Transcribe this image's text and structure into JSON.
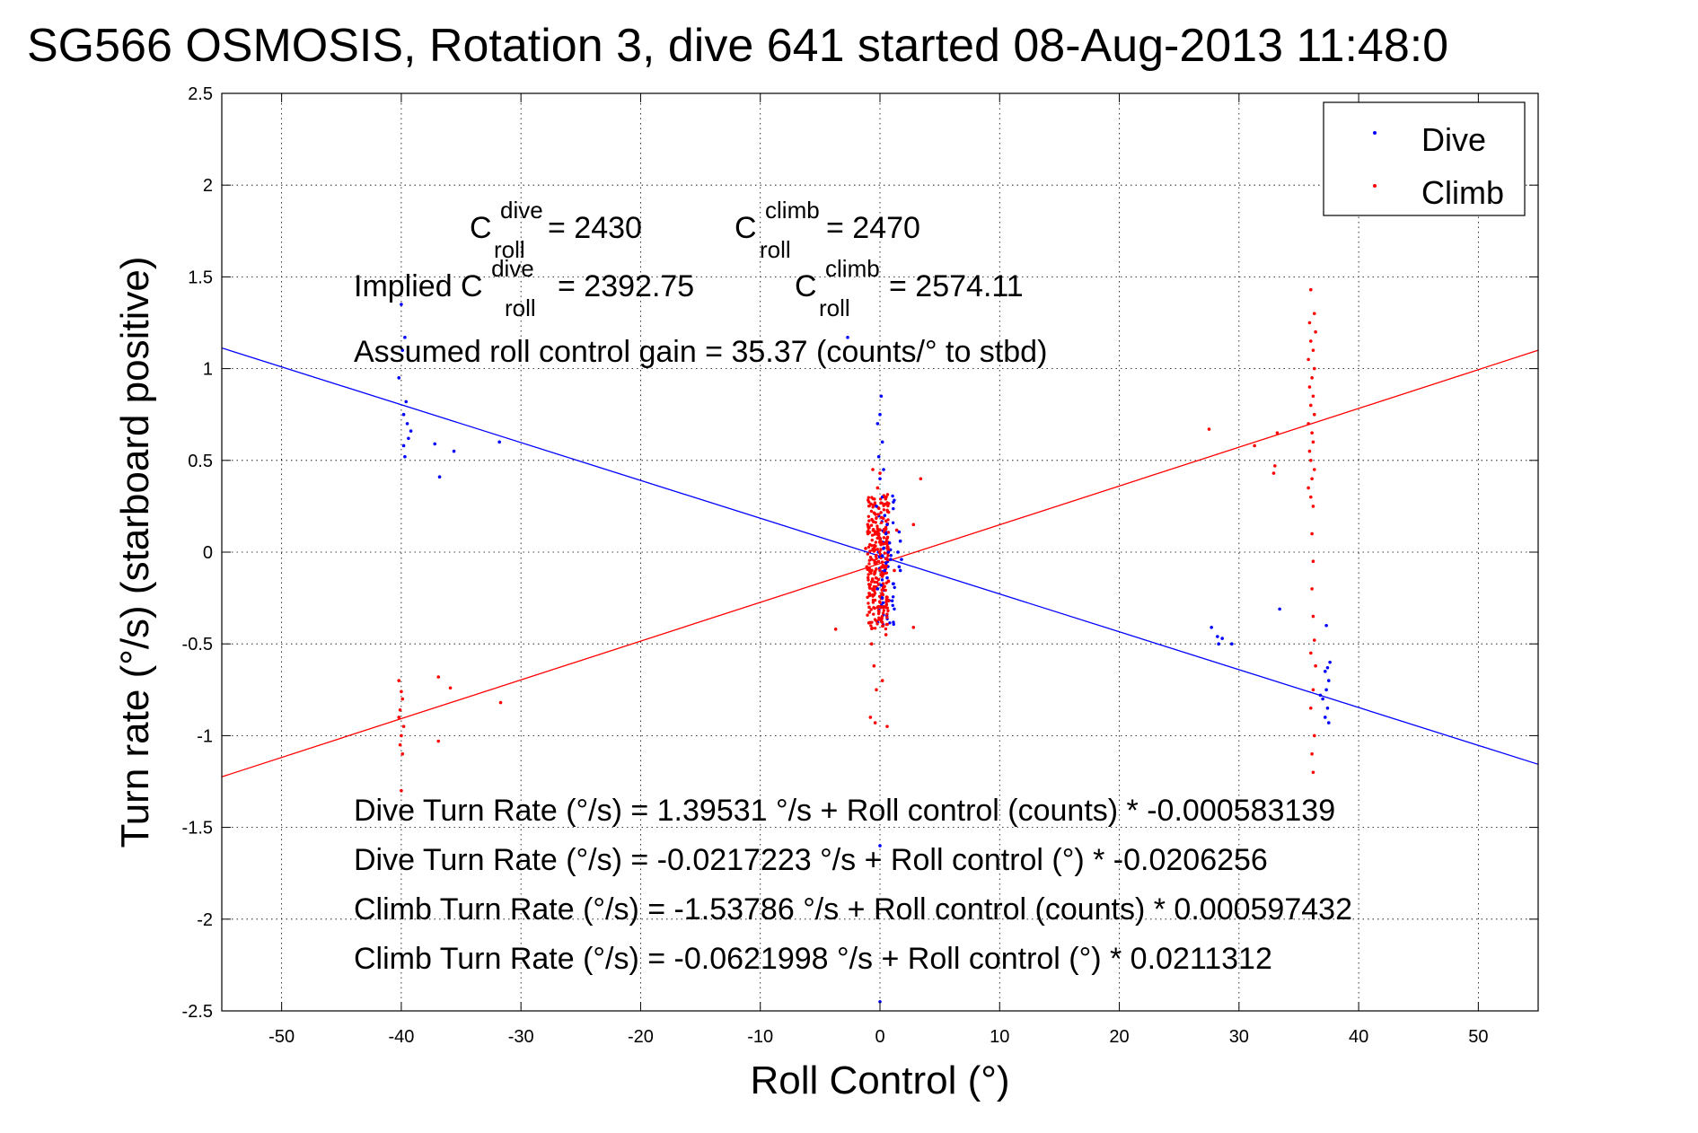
{
  "chart_data": {
    "type": "scatter",
    "title": "SG566 OSMOSIS, Rotation 3, dive 641 started 08-Aug-2013 11:48:0",
    "xlabel": "Roll Control (°)",
    "ylabel": "Turn rate (°/s)  (starboard positive)",
    "xlim": [
      -55,
      55
    ],
    "ylim": [
      -2.5,
      2.5
    ],
    "xticks": [
      -50,
      -40,
      -30,
      -20,
      -10,
      0,
      10,
      20,
      30,
      40,
      50
    ],
    "yticks": [
      -2.5,
      -2,
      -1.5,
      -1,
      -0.5,
      0,
      0.5,
      1,
      1.5,
      2,
      2.5
    ],
    "grid": true,
    "legend": {
      "position": "top-right",
      "entries": [
        {
          "label": "Dive",
          "color": "#0000ff"
        },
        {
          "label": "Climb",
          "color": "#ff0000"
        }
      ]
    },
    "series": [
      {
        "name": "Dive",
        "color": "#0000ff",
        "points": [
          [
            -40,
            1.35
          ],
          [
            -39.7,
            1.17
          ],
          [
            -39.9,
            1.1
          ],
          [
            -40.2,
            0.95
          ],
          [
            -39.6,
            0.82
          ],
          [
            -39.8,
            0.75
          ],
          [
            -39.5,
            0.7
          ],
          [
            -39.2,
            0.66
          ],
          [
            -39.4,
            0.62
          ],
          [
            -39.8,
            0.58
          ],
          [
            -39.7,
            0.52
          ],
          [
            -37.2,
            0.59
          ],
          [
            -36.8,
            0.41
          ],
          [
            -35.6,
            0.55
          ],
          [
            -31.8,
            0.6
          ],
          [
            -2.7,
            1.17
          ],
          [
            0.1,
            0.85
          ],
          [
            0,
            0.75
          ],
          [
            -0.2,
            0.7
          ],
          [
            0.2,
            0.6
          ],
          [
            -0.1,
            0.52
          ],
          [
            0.3,
            0.45
          ],
          [
            0,
            0.4
          ],
          [
            0.2,
            0.3
          ],
          [
            -0.3,
            0.25
          ],
          [
            0.4,
            0.2
          ],
          [
            0.6,
            0.15
          ],
          [
            0.5,
            0.1
          ],
          [
            0.8,
            0.05
          ],
          [
            0.3,
            0.02
          ],
          [
            0.7,
            0
          ],
          [
            0.2,
            -0.02
          ],
          [
            0.9,
            -0.04
          ],
          [
            0.5,
            -0.06
          ],
          [
            0.4,
            -0.1
          ],
          [
            0.6,
            -0.14
          ],
          [
            0.1,
            -0.18
          ],
          [
            -0.2,
            -0.2
          ],
          [
            0.2,
            -0.25
          ],
          [
            1.6,
            0.11
          ],
          [
            1.7,
            0.06
          ],
          [
            1.5,
            0
          ],
          [
            1.8,
            -0.04
          ],
          [
            1.6,
            -0.08
          ],
          [
            1.7,
            -0.1
          ],
          [
            0,
            -1.6
          ],
          [
            0,
            -2.45
          ],
          [
            27.7,
            -0.41
          ],
          [
            28.2,
            -0.46
          ],
          [
            28.6,
            -0.47
          ],
          [
            28.3,
            -0.5
          ],
          [
            29.4,
            -0.5
          ],
          [
            33.4,
            -0.31
          ],
          [
            37.3,
            -0.4
          ],
          [
            37.6,
            -0.6
          ],
          [
            37.4,
            -0.63
          ],
          [
            37.2,
            -0.65
          ],
          [
            37.5,
            -0.7
          ],
          [
            37.3,
            -0.75
          ],
          [
            37,
            -0.8
          ],
          [
            37.4,
            -0.85
          ],
          [
            37.2,
            -0.9
          ],
          [
            37.5,
            -0.93
          ],
          [
            36.8,
            -0.78
          ]
        ]
      },
      {
        "name": "Climb",
        "color": "#ff0000",
        "points": [
          [
            -40.2,
            -0.7
          ],
          [
            -40,
            -0.76
          ],
          [
            -39.9,
            -0.8
          ],
          [
            -40.1,
            -0.86
          ],
          [
            -40.2,
            -0.9
          ],
          [
            -39.8,
            -0.95
          ],
          [
            -40,
            -1.0
          ],
          [
            -40.1,
            -1.05
          ],
          [
            -39.9,
            -1.1
          ],
          [
            -40,
            -1.3
          ],
          [
            -36.9,
            -0.68
          ],
          [
            -36.9,
            -1.03
          ],
          [
            -35.9,
            -0.74
          ],
          [
            -31.7,
            -0.82
          ],
          [
            -3.7,
            -0.42
          ],
          [
            -1,
            0.1
          ],
          [
            -0.8,
            -0.9
          ],
          [
            -0.4,
            -0.93
          ],
          [
            0.6,
            -0.95
          ],
          [
            1.2,
            -0.1
          ],
          [
            1.4,
            0.12
          ],
          [
            2.8,
            0.15
          ],
          [
            3.4,
            0.4
          ],
          [
            2.8,
            -0.41
          ],
          [
            -1.2,
            0.02
          ],
          [
            -1.1,
            -0.08
          ],
          [
            -0.9,
            -0.3
          ],
          [
            -0.6,
            0.45
          ],
          [
            -0.5,
            -0.62
          ],
          [
            -0.3,
            -0.75
          ],
          [
            0,
            0.43
          ],
          [
            0.2,
            -0.7
          ],
          [
            0.4,
            0.3
          ],
          [
            -0.2,
            0.35
          ],
          [
            0.5,
            -0.45
          ],
          [
            -0.7,
            -0.5
          ],
          [
            27.5,
            0.67
          ],
          [
            31.3,
            0.58
          ],
          [
            33.2,
            0.65
          ],
          [
            33,
            0.47
          ],
          [
            32.9,
            0.43
          ],
          [
            36,
            1.43
          ],
          [
            36.3,
            1.3
          ],
          [
            35.9,
            1.25
          ],
          [
            36.4,
            1.2
          ],
          [
            36,
            1.15
          ],
          [
            36.2,
            1.1
          ],
          [
            35.8,
            1.05
          ],
          [
            36.3,
            1.0
          ],
          [
            36.1,
            0.95
          ],
          [
            35.9,
            0.9
          ],
          [
            36.2,
            0.85
          ],
          [
            36,
            0.8
          ],
          [
            36.3,
            0.75
          ],
          [
            35.8,
            0.7
          ],
          [
            36.1,
            0.65
          ],
          [
            36.2,
            0.6
          ],
          [
            35.9,
            0.55
          ],
          [
            36,
            0.5
          ],
          [
            36.3,
            0.45
          ],
          [
            36.1,
            0.4
          ],
          [
            35.8,
            0.35
          ],
          [
            36,
            0.3
          ],
          [
            36.2,
            0.25
          ],
          [
            36.1,
            0.1
          ],
          [
            36.2,
            -0.05
          ],
          [
            36.1,
            -0.2
          ],
          [
            36.2,
            -0.35
          ],
          [
            36.3,
            -0.48
          ],
          [
            36,
            -0.55
          ],
          [
            36.4,
            -0.62
          ],
          [
            36.2,
            -0.75
          ],
          [
            36,
            -0.85
          ],
          [
            36.3,
            -1.0
          ],
          [
            36.1,
            -1.1
          ],
          [
            36.2,
            -1.2
          ]
        ]
      }
    ],
    "fit_lines": [
      {
        "name": "Dive",
        "color": "#0000ff",
        "intercept": -0.0217223,
        "slope": -0.0206256
      },
      {
        "name": "Climb",
        "color": "#ff0000",
        "intercept": -0.0621998,
        "slope": 0.0211312
      }
    ],
    "dense_cluster": {
      "x_center": 0,
      "x_spread": 0.9,
      "y_range": [
        -0.42,
        0.32
      ],
      "count": 340,
      "dive_count": 50
    },
    "annotations": {
      "c_roll_dive_base": "C",
      "c_roll_dive_sup": "dive",
      "c_roll_dive_sub": "roll",
      "c_roll_dive_value": " = 2430",
      "c_roll_climb_base": "C",
      "c_roll_climb_sup": "climb",
      "c_roll_climb_sub": "roll",
      "c_roll_climb_value": " = 2470",
      "implied_prefix": "Implied C",
      "implied_dive_sup": "dive",
      "implied_dive_sub": "roll",
      "implied_dive_value": " = 2392.75",
      "implied_climb_base": "C",
      "implied_climb_sup": "climb",
      "implied_climb_sub": "roll",
      "implied_climb_value": " = 2574.11",
      "gain": "Assumed roll control gain = 35.37 (counts/° to stbd)",
      "eq_dive_counts": "Dive Turn Rate (°/s) = 1.39531 °/s + Roll control (counts) * -0.000583139",
      "eq_dive_deg": "Dive Turn Rate (°/s) = -0.0217223 °/s + Roll control (°) * -0.0206256",
      "eq_climb_counts": "Climb Turn Rate (°/s) = -1.53786 °/s + Roll control (counts) * 0.000597432",
      "eq_climb_deg": "Climb Turn Rate (°/s) = -0.0621998 °/s + Roll control (°) * 0.0211312"
    }
  }
}
